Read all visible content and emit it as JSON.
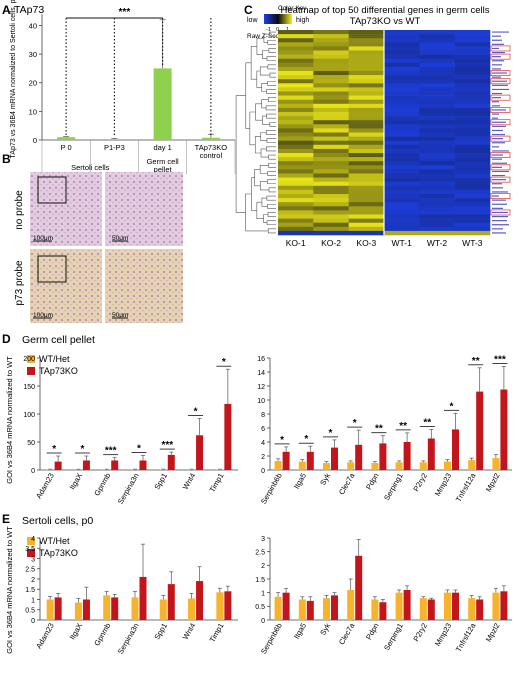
{
  "panels": {
    "A": "A",
    "B": "B",
    "C": "C",
    "D": "D",
    "E": "E"
  },
  "colors": {
    "wt": "#f7b32b",
    "ko": "#c2161c",
    "green": "#8fd14f",
    "heat_low": "#1d3fe0",
    "heat_mid": "#0a0a14",
    "heat_high": "#f5f018"
  },
  "panel_a": {
    "title": "TAp73",
    "ylabel": "TAp73 vs 36B4 mRNA normalized to Sertoli cells, p0",
    "significance": "***",
    "categories": [
      "P 0",
      "P1-P3",
      "day 1",
      "TAp73KO control"
    ],
    "category_lines": [
      [
        "P 0"
      ],
      [
        "P1-P3"
      ],
      [
        "day 1"
      ],
      [
        "TAp73KO",
        "control"
      ]
    ],
    "group_labels": [
      [
        "Sertoli cells"
      ],
      [
        "Sertoli cells"
      ],
      [
        "Germ cell",
        "pellet"
      ],
      [
        "TAp73KO",
        "control"
      ]
    ],
    "values": [
      1,
      0.3,
      25,
      0.8
    ],
    "errors": [
      0.2,
      0.2,
      17,
      1.2
    ],
    "yticks": [
      0,
      10,
      20,
      30,
      40
    ],
    "ylim": [
      0,
      44
    ]
  },
  "chart_data": [
    {
      "type": "bar",
      "title": "TAp73",
      "ylabel": "TAp73 vs 36B4 mRNA normalized to Sertoli cells, p0",
      "categories": [
        "P 0",
        "P1-P3",
        "day 1",
        "TAp73KO control"
      ],
      "values": [
        1,
        0.3,
        25,
        0.8
      ],
      "ylim": [
        0,
        44
      ]
    },
    {
      "type": "heatmap",
      "title": "Heatmap of top 50 differential genes in germ cells",
      "subtitle": "TAp73KO vs WT",
      "columns": [
        "KO-1",
        "KO-2",
        "KO-3",
        "WT-1",
        "WT-2",
        "WT-3"
      ],
      "colorbar": {
        "label": "Color Key",
        "low": "low",
        "high": "high",
        "ticks": [
          "-1",
          "0",
          "1"
        ],
        "axis": "Raw Z-Score"
      }
    },
    {
      "type": "bar",
      "title": "Germ cell pellet",
      "ylabel": "GOI vs 36B4 mRNA normalized to WT",
      "categories": [
        "Adam23",
        "ItgaX",
        "Gpnmb",
        "Serpina3n",
        "Spp1",
        "Wnt4",
        "Timp1"
      ],
      "series": [
        {
          "name": "WT/Het",
          "values": [
            1,
            1,
            1,
            1,
            1,
            1,
            1
          ]
        },
        {
          "name": "TAp73KO",
          "values": [
            15,
            17,
            17,
            17,
            27,
            62,
            118
          ]
        }
      ],
      "ylim": [
        0,
        200
      ]
    },
    {
      "type": "bar",
      "title": "Germ cell pellet",
      "categories": [
        "Serpinb6b",
        "Itga5",
        "Syk",
        "Clec7a",
        "Pdpn",
        "Serping1",
        "P2ry2",
        "Mmp23",
        "Tnfrsf12a",
        "Mpzl2"
      ],
      "series": [
        {
          "name": "WT/Het",
          "values": [
            1.3,
            1.2,
            1,
            1.1,
            1,
            1.1,
            1.1,
            1.2,
            1.4,
            1.7
          ]
        },
        {
          "name": "TAp73KO",
          "values": [
            2.6,
            2.6,
            3.2,
            3.6,
            3.8,
            4,
            4.5,
            5.8,
            11.2,
            11.5
          ]
        }
      ],
      "ylim": [
        0,
        16
      ]
    },
    {
      "type": "bar",
      "title": "Sertoli cells, p0",
      "ylabel": "GOI vs 36B4 mRNA normalized to WT",
      "categories": [
        "Adam23",
        "ItgaX",
        "Gpnmb",
        "Serpina3n",
        "Spp1",
        "Wnt4",
        "Timp1"
      ],
      "series": [
        {
          "name": "WT/Het",
          "values": [
            1,
            0.85,
            1.2,
            1.1,
            1,
            1.05,
            1.35
          ]
        },
        {
          "name": "TAp73KO",
          "values": [
            1.1,
            1,
            1.1,
            2.1,
            1.75,
            1.9,
            1.4
          ]
        }
      ],
      "ylim": [
        0,
        4
      ]
    },
    {
      "type": "bar",
      "title": "Sertoli cells, p0",
      "categories": [
        "Serpinb6b",
        "Itga5",
        "Syk",
        "Clec7a",
        "Pdpn",
        "Serping1",
        "P2ry2",
        "Mmp23",
        "Tnfrsf12a",
        "Mpzl2"
      ],
      "series": [
        {
          "name": "WT/Het",
          "values": [
            0.85,
            0.75,
            0.8,
            1.1,
            0.75,
            1,
            0.8,
            1,
            0.8,
            1
          ]
        },
        {
          "name": "TAp73KO",
          "values": [
            1,
            0.7,
            0.9,
            2.35,
            0.65,
            1.1,
            0.75,
            1,
            0.75,
            1.05
          ]
        }
      ],
      "ylim": [
        0,
        3
      ]
    }
  ],
  "panel_b": {
    "row_labels": [
      "no probe",
      "p73 probe"
    ],
    "scale_labels": [
      "100μm",
      "50μm",
      "100μm",
      "50μm"
    ]
  },
  "panel_c": {
    "title": "Heatmap of top 50 differential genes in germ cells",
    "subtitle": "TAp73KO vs WT",
    "color_key": "Color Key",
    "low": "low",
    "high": "high",
    "ticks": [
      "-1",
      "0",
      "1"
    ],
    "zscore": "Raw Z-Score",
    "columns": [
      "KO-1",
      "KO-2",
      "KO-3",
      "WT-1",
      "WT-2",
      "WT-3"
    ],
    "row_count": 50,
    "gene_count": 50
  },
  "panel_d": {
    "title": "Germ cell pellet",
    "ylabel": "GOI vs 36B4 mRNA normalized to WT",
    "legend": [
      "WT/Het",
      "TAp73KO"
    ],
    "left": {
      "categories": [
        "Adam23",
        "ItgaX",
        "Gpnmb",
        "Serpina3n",
        "Spp1",
        "Wnt4",
        "Timp1"
      ],
      "wt": [
        1,
        1,
        1,
        1,
        1,
        1,
        1
      ],
      "ko": [
        15,
        17,
        17,
        17,
        27,
        62,
        118
      ],
      "wt_err": [
        0.5,
        0.5,
        0.5,
        0.5,
        0.5,
        0.5,
        0.5
      ],
      "ko_err": [
        10,
        8,
        5,
        9,
        5,
        30,
        62
      ],
      "sig": [
        "*",
        "*",
        "***",
        "*",
        "***",
        "*",
        "*"
      ],
      "yticks": [
        0,
        50,
        100,
        150,
        200
      ],
      "ylim": [
        0,
        200
      ]
    },
    "right": {
      "categories": [
        "Serpinb6b",
        "Itga5",
        "Syk",
        "Clec7a",
        "Pdpn",
        "Serping1",
        "P2ry2",
        "Mmp23",
        "Tnfrsf12a",
        "Mpzl2"
      ],
      "wt": [
        1.3,
        1.2,
        1,
        1.1,
        1,
        1.1,
        1.1,
        1.2,
        1.4,
        1.7
      ],
      "ko": [
        2.6,
        2.6,
        3.2,
        3.6,
        3.8,
        4,
        4.5,
        5.8,
        11.2,
        11.5
      ],
      "wt_err": [
        0.3,
        0.3,
        0.2,
        0.2,
        0.2,
        0.2,
        0.2,
        0.3,
        0.3,
        0.5
      ],
      "ko_err": [
        0.7,
        0.8,
        1.1,
        2.1,
        1.1,
        1.3,
        1.3,
        2.3,
        3.4,
        3.3
      ],
      "sig": [
        "*",
        "*",
        "*",
        "*",
        "**",
        "**",
        "**",
        "*",
        "**",
        "***"
      ],
      "yticks": [
        0,
        2,
        4,
        6,
        8,
        10,
        12,
        14,
        16
      ],
      "ylim": [
        0,
        16
      ]
    }
  },
  "panel_e": {
    "title": "Sertoli cells, p0",
    "ylabel": "GOI vs 36B4 mRNA normalized to WT",
    "legend": [
      "WT/Het",
      "TAp73KO"
    ],
    "left": {
      "categories": [
        "Adam23",
        "ItgaX",
        "Gpnmb",
        "Serpina3n",
        "Spp1",
        "Wnt4",
        "Timp1"
      ],
      "wt": [
        1,
        0.85,
        1.2,
        1.1,
        1,
        1.05,
        1.35
      ],
      "ko": [
        1.1,
        1,
        1.1,
        2.1,
        1.75,
        1.9,
        1.4
      ],
      "wt_err": [
        0.15,
        0.2,
        0.2,
        0.3,
        0.2,
        0.25,
        0.2
      ],
      "ko_err": [
        0.2,
        0.6,
        0.15,
        1.6,
        0.6,
        0.7,
        0.25
      ],
      "yticks": [
        0,
        0.5,
        1,
        1.5,
        2,
        2.5,
        3,
        3.5,
        4
      ],
      "ytick_labels": [
        "0",
        "0.5",
        "1",
        "1.5",
        "2",
        "2.5",
        "3",
        "3.5",
        "4"
      ],
      "ylim": [
        0,
        4
      ]
    },
    "right": {
      "categories": [
        "Serpinb6b",
        "Itga5",
        "Syk",
        "Clec7a",
        "Pdpn",
        "Serping1",
        "P2ry2",
        "Mmp23",
        "Tnfrsf12a",
        "Mpzl2"
      ],
      "wt": [
        0.85,
        0.75,
        0.8,
        1.1,
        0.75,
        1,
        0.8,
        1,
        0.8,
        1
      ],
      "ko": [
        1,
        0.7,
        0.9,
        2.35,
        0.65,
        1.1,
        0.75,
        1,
        0.75,
        1.05
      ],
      "wt_err": [
        0.15,
        0.1,
        0.1,
        0.4,
        0.1,
        0.1,
        0.05,
        0.1,
        0.1,
        0.15
      ],
      "ko_err": [
        0.15,
        0.15,
        0.1,
        0.6,
        0.1,
        0.15,
        0.05,
        0.1,
        0.1,
        0.2
      ],
      "yticks": [
        0,
        0.5,
        1,
        1.5,
        2,
        2.5,
        3
      ],
      "ytick_labels": [
        "0",
        "0.5",
        "1",
        "1.5",
        "2",
        "2.5",
        "3"
      ],
      "ylim": [
        0,
        3
      ]
    }
  }
}
